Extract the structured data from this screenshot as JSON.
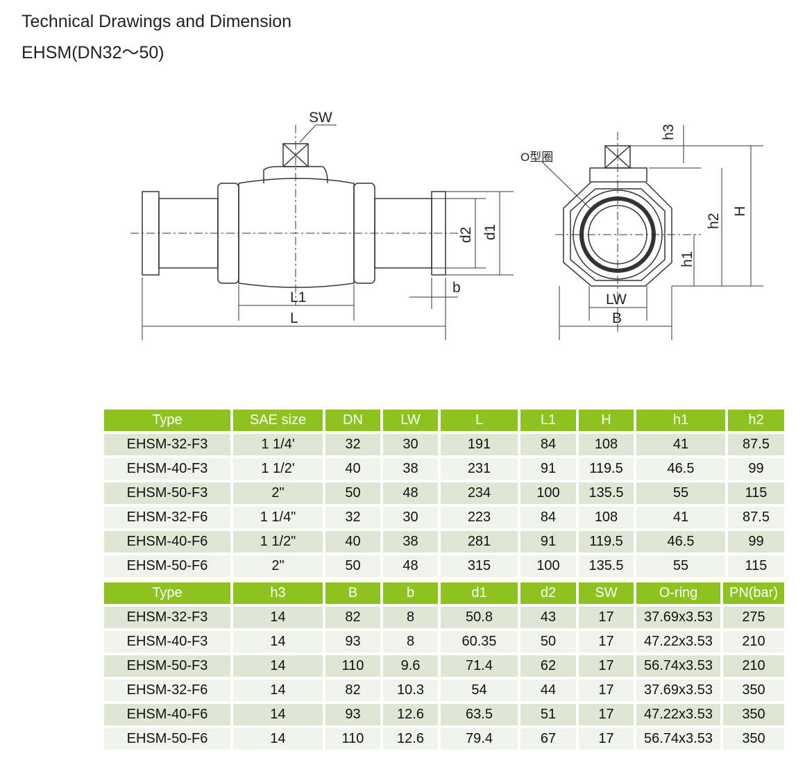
{
  "title": "Technical Drawings and Dimension",
  "subtitle": "EHSM(DN32～50)",
  "drawing_labels": {
    "sw": "SW",
    "l1": "L1",
    "l": "L",
    "d1": "d1",
    "d2": "d2",
    "b_small": "b",
    "oring": "O型圈",
    "h3": "h3",
    "h2": "h2",
    "h1": "h1",
    "H": "H",
    "lw": "LW",
    "B": "B"
  },
  "table1": {
    "headers": [
      "Type",
      "SAE size",
      "DN",
      "LW",
      "L",
      "L1",
      "H",
      "h1",
      "h2"
    ],
    "rows": [
      [
        "EHSM-32-F3",
        "1 1/4'",
        "32",
        "30",
        "191",
        "84",
        "108",
        "41",
        "87.5"
      ],
      [
        "EHSM-40-F3",
        "1 1/2'",
        "40",
        "38",
        "231",
        "91",
        "119.5",
        "46.5",
        "99"
      ],
      [
        "EHSM-50-F3",
        "2\"",
        "50",
        "48",
        "234",
        "100",
        "135.5",
        "55",
        "115"
      ],
      [
        "EHSM-32-F6",
        "1 1/4\"",
        "32",
        "30",
        "223",
        "84",
        "108",
        "41",
        "87.5"
      ],
      [
        "EHSM-40-F6",
        "1 1/2\"",
        "40",
        "38",
        "281",
        "91",
        "119.5",
        "46.5",
        "99"
      ],
      [
        "EHSM-50-F6",
        "2\"",
        "50",
        "48",
        "315",
        "100",
        "135.5",
        "55",
        "115"
      ]
    ]
  },
  "table2": {
    "headers": [
      "Type",
      "h3",
      "B",
      "b",
      "d1",
      "d2",
      "SW",
      "O-ring",
      "PN(bar)"
    ],
    "rows": [
      [
        "EHSM-32-F3",
        "14",
        "82",
        "8",
        "50.8",
        "43",
        "17",
        "37.69x3.53",
        "275"
      ],
      [
        "EHSM-40-F3",
        "14",
        "93",
        "8",
        "60.35",
        "50",
        "17",
        "47.22x3.53",
        "210"
      ],
      [
        "EHSM-50-F3",
        "14",
        "110",
        "9.6",
        "71.4",
        "62",
        "17",
        "56.74x3.53",
        "210"
      ],
      [
        "EHSM-32-F6",
        "14",
        "82",
        "10.3",
        "54",
        "44",
        "17",
        "37.69x3.53",
        "350"
      ],
      [
        "EHSM-40-F6",
        "14",
        "93",
        "12.6",
        "63.5",
        "51",
        "17",
        "47.22x3.53",
        "350"
      ],
      [
        "EHSM-50-F6",
        "14",
        "110",
        "12.6",
        "79.4",
        "67",
        "17",
        "56.74x3.53",
        "350"
      ]
    ]
  }
}
